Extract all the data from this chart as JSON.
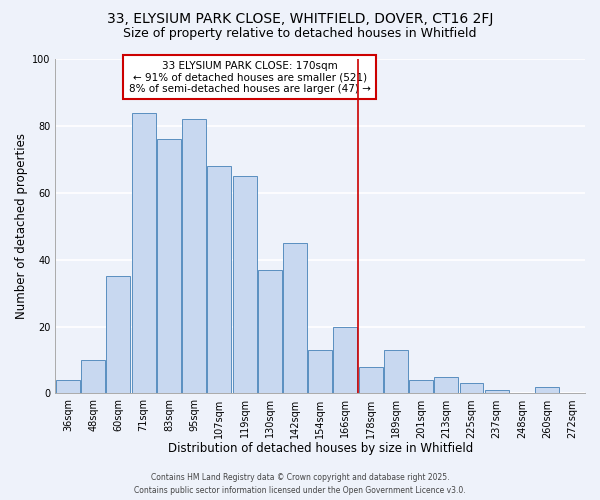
{
  "title1": "33, ELYSIUM PARK CLOSE, WHITFIELD, DOVER, CT16 2FJ",
  "title2": "Size of property relative to detached houses in Whitfield",
  "xlabel": "Distribution of detached houses by size in Whitfield",
  "ylabel": "Number of detached properties",
  "bar_labels": [
    "36sqm",
    "48sqm",
    "60sqm",
    "71sqm",
    "83sqm",
    "95sqm",
    "107sqm",
    "119sqm",
    "130sqm",
    "142sqm",
    "154sqm",
    "166sqm",
    "178sqm",
    "189sqm",
    "201sqm",
    "213sqm",
    "225sqm",
    "237sqm",
    "248sqm",
    "260sqm",
    "272sqm"
  ],
  "bar_heights": [
    4,
    10,
    35,
    84,
    76,
    82,
    68,
    65,
    37,
    45,
    13,
    20,
    8,
    13,
    4,
    5,
    3,
    1,
    0,
    2,
    0
  ],
  "bar_color": "#c8d8f0",
  "bar_edge_color": "#5a8fc0",
  "background_color": "#eef2fa",
  "grid_color": "#ffffff",
  "vline_x": 11.5,
  "vline_color": "#cc0000",
  "annotation_title": "33 ELYSIUM PARK CLOSE: 170sqm",
  "annotation_line1": "← 91% of detached houses are smaller (521)",
  "annotation_line2": "8% of semi-detached houses are larger (47) →",
  "annotation_box_color": "#cc0000",
  "ylim": [
    0,
    100
  ],
  "yticks": [
    0,
    20,
    40,
    60,
    80,
    100
  ],
  "footer1": "Contains HM Land Registry data © Crown copyright and database right 2025.",
  "footer2": "Contains public sector information licensed under the Open Government Licence v3.0.",
  "title_fontsize": 10,
  "subtitle_fontsize": 9,
  "axis_label_fontsize": 8.5,
  "tick_fontsize": 7,
  "annotation_fontsize": 7.5,
  "footer_fontsize": 5.5
}
